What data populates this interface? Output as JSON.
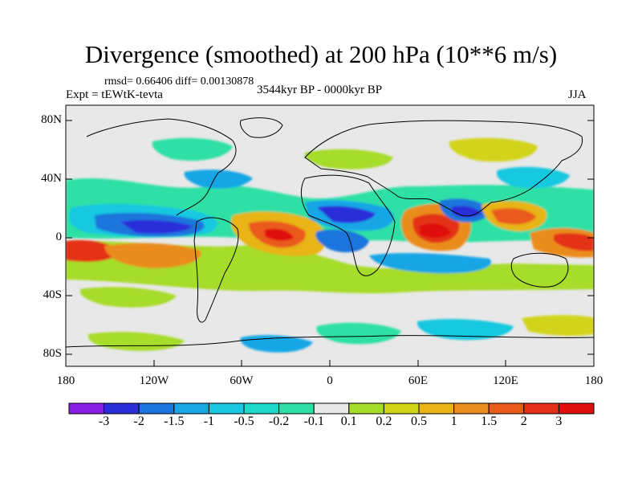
{
  "title": "Divergence (smoothed) at 200 hPa (10**6 m/s)",
  "stats": "rmsd= 0.66406 diff= 0.00130878",
  "experiment": "Expt = tEWtK-tevta",
  "period": "3544kyr BP - 0000kyr BP",
  "season": "JJA",
  "axes": {
    "lat_labels": [
      "80N",
      "40N",
      "0",
      "40S",
      "80S"
    ],
    "lon_labels": [
      "180",
      "120W",
      "60W",
      "0",
      "60E",
      "120E",
      "180"
    ]
  },
  "colorbar": {
    "labels": [
      "-3",
      "-2",
      "-1.5",
      "-1",
      "-0.5",
      "-0.2",
      "-0.1",
      "0.1",
      "0.2",
      "0.5",
      "1",
      "1.5",
      "2",
      "3"
    ],
    "colors": [
      "#8a1ee6",
      "#2c2ed9",
      "#1a74dc",
      "#18a6e6",
      "#18c8e0",
      "#1ed8c8",
      "#2ee0a6",
      "#e8e8e8",
      "#a6dc2a",
      "#d2d41a",
      "#e8b418",
      "#ea8c1e",
      "#ea5a1c",
      "#e43018",
      "#e01010"
    ]
  },
  "colors": {
    "ocean_background": "#e8e8e8",
    "coastline": "#000000"
  }
}
